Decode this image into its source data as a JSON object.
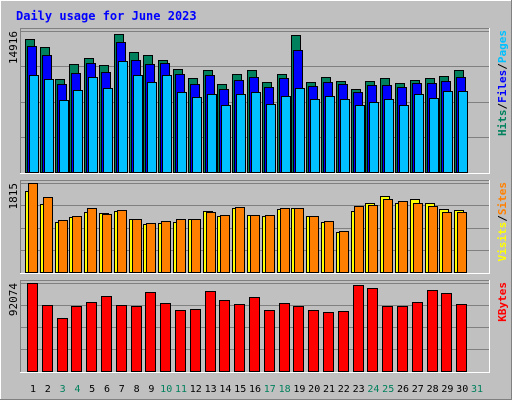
{
  "chart_data": {
    "type": "bar",
    "title": "Daily usage for June 2023",
    "days": [
      "1",
      "2",
      "3",
      "4",
      "5",
      "6",
      "7",
      "8",
      "9",
      "10",
      "11",
      "12",
      "13",
      "14",
      "15",
      "16",
      "17",
      "18",
      "19",
      "20",
      "21",
      "22",
      "23",
      "24",
      "25",
      "26",
      "27",
      "28",
      "29",
      "30",
      "31"
    ],
    "weekend_days": [
      "3",
      "4",
      "10",
      "11",
      "17",
      "18",
      "24",
      "25",
      "31"
    ],
    "panels": [
      {
        "id": "hits-files-pages",
        "max_label": "14916",
        "ymax": 14916,
        "series": [
          {
            "name": "Hits",
            "color": "#00805c",
            "values": [
              14100,
              13200,
              9800,
              11400,
              12100,
              11300,
              14600,
              12700,
              12400,
              11900,
              10900,
              9900,
              10800,
              9300,
              10400,
              10800,
              9500,
              10400,
              14500,
              9500,
              10000,
              9600,
              8800,
              9600,
              9900,
              9400,
              9700,
              9900,
              10200,
              10800,
              0
            ]
          },
          {
            "name": "Files",
            "color": "#0000ff",
            "values": [
              13300,
              12400,
              9300,
              10500,
              11500,
              10600,
              13700,
              11800,
              11400,
              11500,
              10400,
              9300,
              10300,
              8800,
              9700,
              10000,
              9000,
              9900,
              12900,
              9100,
              9500,
              9300,
              8500,
              9200,
              9200,
              9000,
              9400,
              9400,
              9600,
              10100,
              0
            ]
          },
          {
            "name": "Pages",
            "color": "#00c0ff",
            "values": [
              10300,
              9800,
              7600,
              8700,
              10000,
              8900,
              11700,
              10300,
              9500,
              10300,
              8500,
              7900,
              8300,
              7100,
              8300,
              8500,
              7200,
              8000,
              8900,
              7700,
              8000,
              7700,
              7100,
              7400,
              7700,
              7100,
              8200,
              7800,
              8600,
              8600,
              0
            ]
          }
        ]
      },
      {
        "id": "visits-sites",
        "max_label": "1815",
        "ymax": 1815,
        "series": [
          {
            "name": "Visits",
            "color": "#ffff00",
            "values": [
              1660,
              1380,
              1010,
              1120,
              1220,
              1210,
              1250,
              1090,
              980,
              1000,
              1020,
              1080,
              1250,
              1150,
              1310,
              1170,
              1150,
              1290,
              1310,
              1140,
              1020,
              810,
              1240,
              1400,
              1550,
              1400,
              1490,
              1410,
              1280,
              1260,
              0
            ]
          },
          {
            "name": "Sites",
            "color": "#ff8000",
            "values": [
              1810,
              1530,
              1070,
              1140,
              1310,
              1190,
              1270,
              1090,
              1000,
              1030,
              1080,
              1080,
              1220,
              1160,
              1320,
              1170,
              1170,
              1300,
              1310,
              1150,
              1030,
              830,
              1340,
              1360,
              1480,
              1450,
              1410,
              1340,
              1220,
              1230,
              0
            ]
          }
        ]
      },
      {
        "id": "kbytes",
        "max_label": "92074",
        "ymax": 92074,
        "series": [
          {
            "name": "KBytes",
            "color": "#ff0000",
            "values": [
              92000,
              69500,
              55000,
              67500,
              72500,
              78000,
              69000,
              68500,
              82500,
              71000,
              63500,
              64500,
              84000,
              74500,
              70500,
              77500,
              63500,
              71000,
              68000,
              64000,
              61500,
              62500,
              90000,
              87000,
              68000,
              67500,
              72500,
              84500,
              82000,
              70000,
              0
            ]
          }
        ]
      }
    ]
  }
}
